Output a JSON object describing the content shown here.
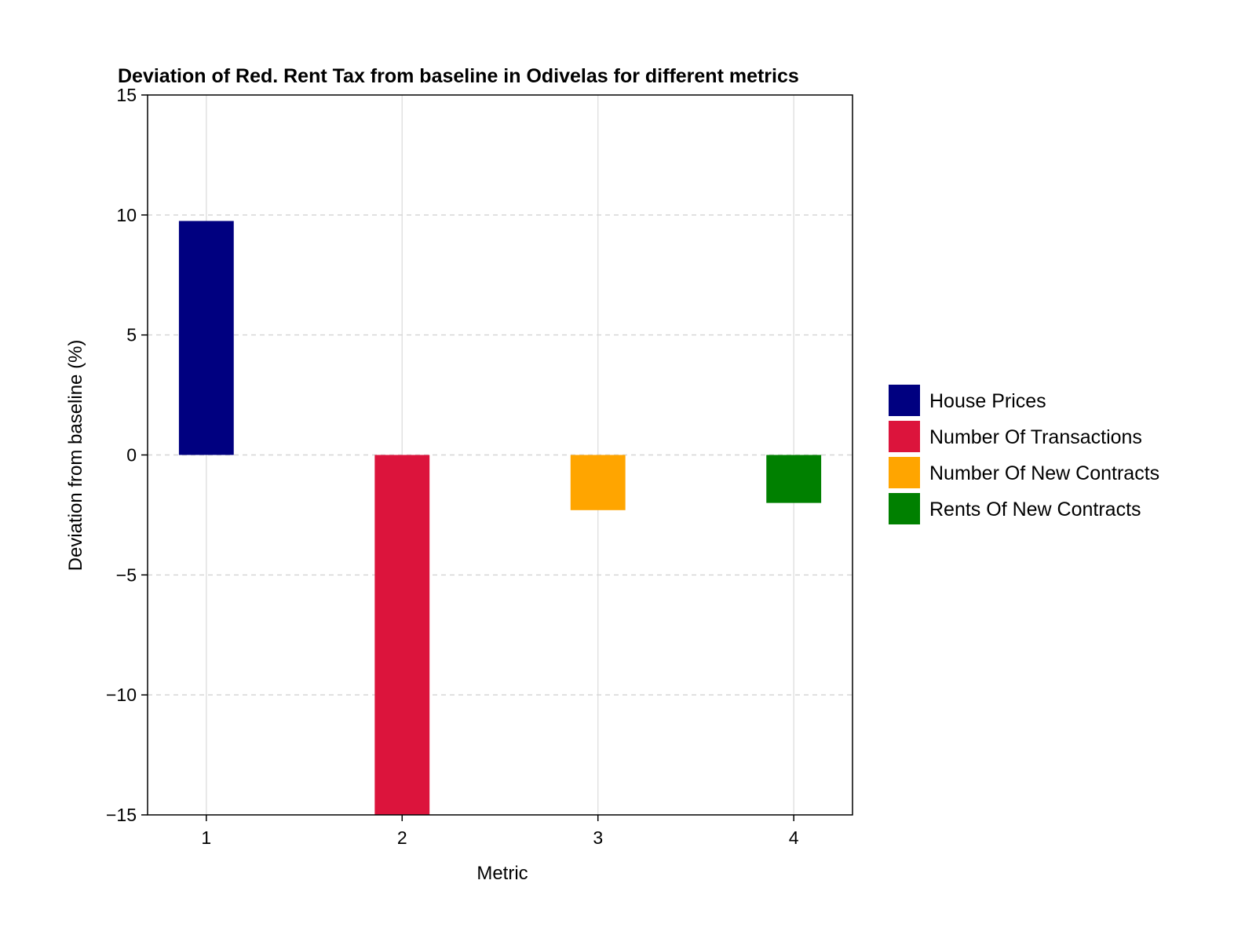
{
  "chart_data": {
    "type": "bar",
    "title": "Deviation of Red. Rent Tax from baseline in Odivelas for different metrics",
    "xlabel": "Metric",
    "ylabel": "Deviation from baseline (%)",
    "categories": [
      "1",
      "2",
      "3",
      "4"
    ],
    "x": [
      1,
      2,
      3,
      4
    ],
    "xlim": [
      0.7,
      4.3
    ],
    "ylim": [
      -15,
      15
    ],
    "yticks": [
      -15,
      -10,
      -5,
      0,
      5,
      10,
      15
    ],
    "ytick_labels": [
      "−15",
      "−10",
      "−5",
      "0",
      "5",
      "10",
      "15"
    ],
    "grid": true,
    "legend_position": "right",
    "series": [
      {
        "name": "House Prices",
        "x": 1,
        "value": 9.75,
        "color": "#000080"
      },
      {
        "name": "Number Of Transactions",
        "x": 2,
        "value": -15.0,
        "color": "#dc143c"
      },
      {
        "name": "Number Of New Contracts",
        "x": 3,
        "value": -2.3,
        "color": "#ffa500"
      },
      {
        "name": "Rents Of New Contracts",
        "x": 4,
        "value": -2.0,
        "color": "#008000"
      }
    ]
  }
}
